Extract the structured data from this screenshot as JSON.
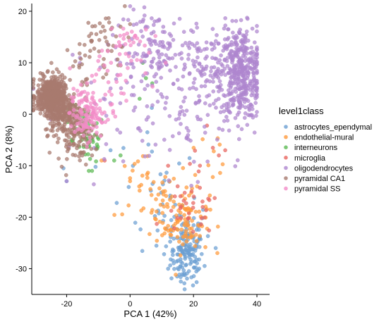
{
  "chart_data": {
    "type": "scatter",
    "xlabel": "PCA 1 (42%)",
    "ylabel": "PCA 2 (8%)",
    "xlim": [
      -31,
      44
    ],
    "ylim": [
      -35,
      21.5
    ],
    "xticks": [
      -20,
      0,
      20,
      40
    ],
    "yticks": [
      -30,
      -20,
      -10,
      0,
      10,
      20
    ],
    "grid": false,
    "legend": {
      "title": "level1class",
      "position": "right"
    },
    "series": [
      {
        "name": "astrocytes_ependymal",
        "color": "#6C9FD2",
        "clusters": [
          {
            "cx": 18,
            "cy": -28,
            "sx": 2.6,
            "sy": 2.6,
            "n": 110
          },
          {
            "cx": 17,
            "cy": -23,
            "sx": 4,
            "sy": 3,
            "n": 50
          },
          {
            "cx": 10,
            "cy": -16,
            "sx": 6,
            "sy": 5,
            "n": 25
          },
          {
            "cx": 2,
            "cy": -8,
            "sx": 6,
            "sy": 4,
            "n": 10
          }
        ],
        "points": [
          [
            -20,
            -13
          ],
          [
            -21,
            -10.5
          ],
          [
            16,
            -32.5
          ],
          [
            12,
            -30
          ],
          [
            27,
            -26
          ]
        ]
      },
      {
        "name": "endothelial-mural",
        "color": "#FF9A3C",
        "clusters": [
          {
            "cx": 18,
            "cy": -21,
            "sx": 3.5,
            "sy": 3,
            "n": 80
          },
          {
            "cx": 10,
            "cy": -18,
            "sx": 4,
            "sy": 2.5,
            "n": 35
          },
          {
            "cx": 3,
            "cy": -14,
            "sx": 4,
            "sy": 3,
            "n": 20
          },
          {
            "cx": 22,
            "cy": -10,
            "sx": 6,
            "sy": 5,
            "n": 15
          }
        ],
        "points": [
          [
            -9,
            -9
          ],
          [
            0,
            -13
          ]
        ]
      },
      {
        "name": "interneurons",
        "color": "#5DBA54",
        "clusters": [
          {
            "cx": -13,
            "cy": -5,
            "sx": 2.5,
            "sy": 2.5,
            "n": 45
          },
          {
            "cx": -16,
            "cy": -2,
            "sx": 2.5,
            "sy": 2,
            "n": 20
          }
        ],
        "points": [
          [
            5,
            7
          ],
          [
            4,
            10
          ],
          [
            7,
            6
          ],
          [
            -12,
            -11
          ],
          [
            -13,
            -11
          ],
          [
            3,
            3
          ],
          [
            -3,
            -8
          ],
          [
            -5,
            -9
          ]
        ]
      },
      {
        "name": "microglia",
        "color": "#E8655F",
        "clusters": [
          {
            "cx": 19,
            "cy": -19.5,
            "sx": 4,
            "sy": 2,
            "n": 25
          },
          {
            "cx": 23,
            "cy": -12,
            "sx": 4,
            "sy": 4,
            "n": 12
          }
        ],
        "points": [
          [
            28,
            -8
          ],
          [
            30,
            -7
          ],
          [
            -8,
            -9
          ],
          [
            15,
            -14
          ],
          [
            12,
            -10
          ]
        ]
      },
      {
        "name": "oligodendrocytes",
        "color": "#AE86CF",
        "clusters": [
          {
            "cx": 35,
            "cy": 8,
            "sx": 3.2,
            "sy": 4.5,
            "n": 380
          },
          {
            "cx": 25,
            "cy": 9,
            "sx": 6,
            "sy": 4.5,
            "n": 140
          },
          {
            "cx": 8,
            "cy": 12,
            "sx": 5,
            "sy": 4,
            "n": 110
          },
          {
            "cx": 0,
            "cy": 4,
            "sx": 9,
            "sy": 6,
            "n": 60
          },
          {
            "cx": 20,
            "cy": -2,
            "sx": 7,
            "sy": 5,
            "n": 50
          }
        ],
        "points": [
          [
            4,
            18
          ],
          [
            5,
            17
          ],
          [
            17,
            16
          ],
          [
            32,
            14
          ],
          [
            -20,
            -13
          ],
          [
            -25,
            -1
          ]
        ]
      },
      {
        "name": "pyramidal CA1",
        "color": "#A87A6F",
        "clusters": [
          {
            "cx": -25,
            "cy": 3.5,
            "sx": 2.2,
            "sy": 1.8,
            "n": 500
          },
          {
            "cx": -21,
            "cy": 0.5,
            "sx": 3,
            "sy": 2.2,
            "n": 220
          },
          {
            "cx": -17,
            "cy": -4,
            "sx": 3,
            "sy": 2.6,
            "n": 100
          },
          {
            "cx": -8,
            "cy": 14,
            "sx": 4,
            "sy": 3,
            "n": 40
          },
          {
            "cx": -15,
            "cy": 9,
            "sx": 4,
            "sy": 3,
            "n": 20
          }
        ],
        "points": [
          [
            -3,
            17
          ],
          [
            0,
            17.5
          ],
          [
            -6,
            16.5
          ],
          [
            -12,
            -8
          ],
          [
            -28,
            4
          ],
          [
            -29,
            2
          ]
        ]
      },
      {
        "name": "pyramidal SS",
        "color": "#F28CC8",
        "clusters": [
          {
            "cx": -14,
            "cy": 0,
            "sx": 2.5,
            "sy": 2.5,
            "n": 110
          },
          {
            "cx": -2,
            "cy": 13,
            "sx": 4,
            "sy": 3,
            "n": 40
          },
          {
            "cx": -8,
            "cy": 5,
            "sx": 4,
            "sy": 4,
            "n": 25
          }
        ],
        "points": [
          [
            -6,
            10
          ],
          [
            -12,
            3
          ],
          [
            -10,
            -1
          ],
          [
            -2,
            4
          ]
        ]
      }
    ]
  }
}
